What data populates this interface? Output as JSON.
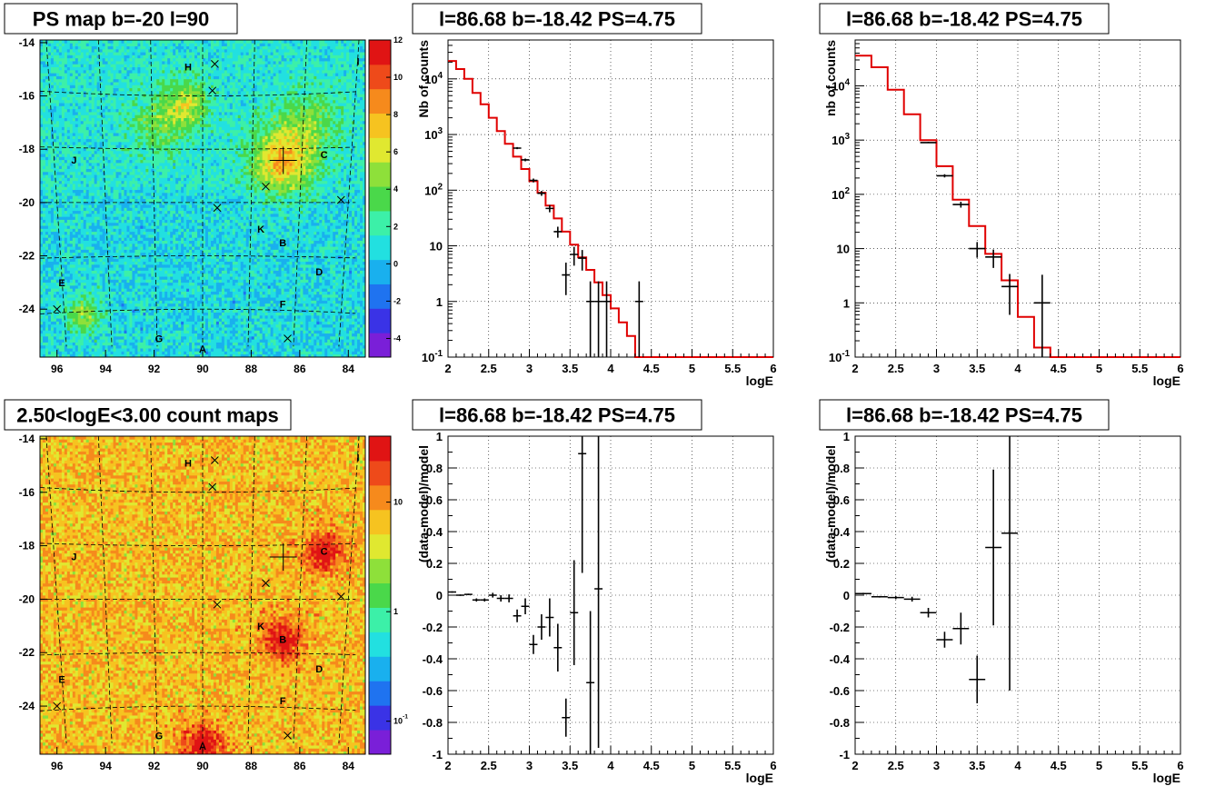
{
  "chart_data": [
    {
      "type": "heatmap",
      "title": "PS map b=-20 l=90",
      "x_ticks": [
        "96",
        "94",
        "92",
        "90",
        "88",
        "86",
        "84"
      ],
      "y_ticks": [
        "-14",
        "-16",
        "-18",
        "-20",
        "-22",
        "-24"
      ],
      "xlim": [
        96.7,
        83.3
      ],
      "ylim": [
        -25.8,
        -13.9
      ],
      "colorbar_ticks": [
        "12",
        "10",
        "8",
        "6",
        "4",
        "2",
        "0",
        "-2",
        "-4"
      ],
      "colorbar_range": [
        -5,
        12
      ],
      "palette": [
        "#7a1fd8",
        "#3a33e6",
        "#1f73f0",
        "#19b0ee",
        "#22e0e0",
        "#3cf0a8",
        "#4ad84a",
        "#8ee03a",
        "#e0e830",
        "#f6c320",
        "#f68a1c",
        "#ee4a1a",
        "#e01414"
      ],
      "sources": [
        {
          "label": "H",
          "l": 90.6,
          "b": -14.9
        },
        {
          "label": "J",
          "l": 95.3,
          "b": -18.4
        },
        {
          "label": "C",
          "l": 85.0,
          "b": -18.2
        },
        {
          "label": "K",
          "l": 87.6,
          "b": -21.0
        },
        {
          "label": "B",
          "l": 86.7,
          "b": -21.5
        },
        {
          "label": "D",
          "l": 85.2,
          "b": -22.6
        },
        {
          "label": "E",
          "l": 95.8,
          "b": -23.0
        },
        {
          "label": "F",
          "l": 86.7,
          "b": -23.8
        },
        {
          "label": "G",
          "l": 91.8,
          "b": -25.1
        },
        {
          "label": "A",
          "l": 90.0,
          "b": -25.5
        },
        {
          "label": "I",
          "l": 83.6,
          "b": -14.7
        }
      ],
      "crosses": [
        {
          "l": 89.5,
          "b": -14.8
        },
        {
          "l": 89.6,
          "b": -15.8
        },
        {
          "l": 87.4,
          "b": -19.4
        },
        {
          "l": 89.4,
          "b": -20.2
        },
        {
          "l": 84.3,
          "b": -19.9
        },
        {
          "l": 96.0,
          "b": -24.0
        },
        {
          "l": 86.5,
          "b": -25.1
        }
      ],
      "target": {
        "l": 86.68,
        "b": -18.42
      }
    },
    {
      "type": "line",
      "title": "l=86.68 b=-18.42 PS=4.75",
      "xlabel": "logE",
      "ylabel": "Nb of counts",
      "y_scale": "log",
      "xlim": [
        2,
        6
      ],
      "ylim": [
        0.1,
        50000
      ],
      "x_ticks": [
        "2",
        "2.5",
        "3",
        "3.5",
        "4",
        "4.5",
        "5",
        "5.5",
        "6"
      ],
      "y_ticks": [
        "10^-1",
        "1",
        "10",
        "10^2",
        "10^3",
        "10^4"
      ],
      "model_color": "#e00000",
      "model_edges": [
        2.0,
        2.1,
        2.2,
        2.3,
        2.4,
        2.5,
        2.6,
        2.7,
        2.8,
        2.9,
        3.0,
        3.1,
        3.2,
        3.3,
        3.4,
        3.5,
        3.6,
        3.7,
        3.8,
        3.9,
        4.0,
        4.1,
        4.2,
        4.3,
        6.0
      ],
      "model_values": [
        21000,
        15000,
        10000,
        5600,
        3500,
        2000,
        1150,
        680,
        400,
        240,
        145,
        90,
        53,
        31,
        18,
        10.5,
        6.2,
        3.7,
        2.2,
        1.3,
        0.75,
        0.42,
        0.24,
        0.1
      ],
      "data_points": [
        {
          "x": 2.85,
          "y": 570,
          "xerr": 0.05,
          "yerr_lo": 25,
          "yerr_hi": 25
        },
        {
          "x": 2.95,
          "y": 350,
          "xerr": 0.05,
          "yerr_lo": 20,
          "yerr_hi": 20
        },
        {
          "x": 3.05,
          "y": 150,
          "xerr": 0.05,
          "yerr_lo": 12,
          "yerr_hi": 12
        },
        {
          "x": 3.15,
          "y": 88,
          "xerr": 0.05,
          "yerr_lo": 9,
          "yerr_hi": 9
        },
        {
          "x": 3.25,
          "y": 47,
          "xerr": 0.05,
          "yerr_lo": 7,
          "yerr_hi": 7
        },
        {
          "x": 3.35,
          "y": 18,
          "xerr": 0.05,
          "yerr_lo": 4,
          "yerr_hi": 4
        },
        {
          "x": 3.45,
          "y": 3,
          "xerr": 0.05,
          "yerr_lo": 1.7,
          "yerr_hi": 2.0
        },
        {
          "x": 3.55,
          "y": 7,
          "xerr": 0.05,
          "yerr_lo": 2.6,
          "yerr_hi": 2.6
        },
        {
          "x": 3.65,
          "y": 6,
          "xerr": 0.05,
          "yerr_lo": 2.4,
          "yerr_hi": 2.4
        },
        {
          "x": 3.75,
          "y": 1,
          "xerr": 0.05,
          "yerr_lo": 0.99,
          "yerr_hi": 1.3
        },
        {
          "x": 3.85,
          "y": 1,
          "xerr": 0.05,
          "yerr_lo": 0.99,
          "yerr_hi": 1.3
        },
        {
          "x": 3.95,
          "y": 1,
          "xerr": 0.05,
          "yerr_lo": 0.99,
          "yerr_hi": 1.3
        },
        {
          "x": 4.35,
          "y": 1,
          "xerr": 0.05,
          "yerr_lo": 0.99,
          "yerr_hi": 1.3
        }
      ]
    },
    {
      "type": "line",
      "title": "l=86.68 b=-18.42 PS=4.75",
      "xlabel": "logE",
      "ylabel": "nb of counts",
      "y_scale": "log",
      "xlim": [
        2,
        6
      ],
      "ylim": [
        0.1,
        70000
      ],
      "x_ticks": [
        "2",
        "2.5",
        "3",
        "3.5",
        "4",
        "4.5",
        "5",
        "5.5",
        "6"
      ],
      "y_ticks": [
        "10^-1",
        "1",
        "10",
        "10^2",
        "10^3",
        "10^4"
      ],
      "model_color": "#e00000",
      "model_edges": [
        2.0,
        2.2,
        2.4,
        2.6,
        2.8,
        3.0,
        3.2,
        3.4,
        3.6,
        3.8,
        4.0,
        4.2,
        4.4,
        6.0
      ],
      "model_values": [
        36000,
        22000,
        8500,
        3000,
        1000,
        330,
        80,
        26,
        8,
        2.6,
        0.55,
        0.15,
        0.1
      ],
      "data_points": [
        {
          "x": 2.9,
          "y": 900,
          "xerr": 0.1,
          "yerr_lo": 30,
          "yerr_hi": 30
        },
        {
          "x": 3.1,
          "y": 220,
          "xerr": 0.1,
          "yerr_lo": 15,
          "yerr_hi": 15
        },
        {
          "x": 3.3,
          "y": 65,
          "xerr": 0.1,
          "yerr_lo": 8,
          "yerr_hi": 8
        },
        {
          "x": 3.5,
          "y": 10,
          "xerr": 0.1,
          "yerr_lo": 3.2,
          "yerr_hi": 3.2
        },
        {
          "x": 3.7,
          "y": 7,
          "xerr": 0.1,
          "yerr_lo": 2.6,
          "yerr_hi": 2.6
        },
        {
          "x": 3.9,
          "y": 2,
          "xerr": 0.1,
          "yerr_lo": 1.4,
          "yerr_hi": 1.4
        },
        {
          "x": 4.3,
          "y": 1,
          "xerr": 0.1,
          "yerr_lo": 0.99,
          "yerr_hi": 2.3
        }
      ]
    },
    {
      "type": "heatmap",
      "title": "2.50<logE<3.00 count maps",
      "x_ticks": [
        "96",
        "94",
        "92",
        "90",
        "88",
        "86",
        "84"
      ],
      "y_ticks": [
        "-14",
        "-16",
        "-18",
        "-20",
        "-22",
        "-24"
      ],
      "xlim": [
        96.7,
        83.3
      ],
      "ylim": [
        -25.8,
        -13.9
      ],
      "colorbar_ticks": [
        "10",
        "1",
        "10^-1"
      ],
      "colorbar_log": true,
      "colorbar_range": [
        0.05,
        40
      ],
      "palette": [
        "#7a1fd8",
        "#3a33e6",
        "#1f73f0",
        "#19b0ee",
        "#22e0e0",
        "#3cf0a8",
        "#4ad84a",
        "#8ee03a",
        "#e0e830",
        "#f6c320",
        "#f68a1c",
        "#ee4a1a",
        "#e01414"
      ],
      "sources": [
        {
          "label": "H",
          "l": 90.6,
          "b": -14.9
        },
        {
          "label": "J",
          "l": 95.3,
          "b": -18.4
        },
        {
          "label": "C",
          "l": 85.0,
          "b": -18.2
        },
        {
          "label": "K",
          "l": 87.6,
          "b": -21.0
        },
        {
          "label": "B",
          "l": 86.7,
          "b": -21.5
        },
        {
          "label": "D",
          "l": 85.2,
          "b": -22.6
        },
        {
          "label": "E",
          "l": 95.8,
          "b": -23.0
        },
        {
          "label": "F",
          "l": 86.7,
          "b": -23.8
        },
        {
          "label": "G",
          "l": 91.8,
          "b": -25.1
        },
        {
          "label": "A",
          "l": 90.0,
          "b": -25.5
        },
        {
          "label": "I",
          "l": 83.6,
          "b": -14.7
        }
      ],
      "crosses": [
        {
          "l": 89.5,
          "b": -14.8
        },
        {
          "l": 89.6,
          "b": -15.8
        },
        {
          "l": 87.4,
          "b": -19.4
        },
        {
          "l": 89.4,
          "b": -20.2
        },
        {
          "l": 84.3,
          "b": -19.9
        },
        {
          "l": 96.0,
          "b": -24.0
        },
        {
          "l": 86.5,
          "b": -25.1
        }
      ],
      "target": {
        "l": 86.68,
        "b": -18.42
      }
    },
    {
      "type": "scatter",
      "title": "l=86.68 b=-18.42 PS=4.75",
      "xlabel": "logE",
      "ylabel": "(data-model)/model",
      "xlim": [
        2,
        6
      ],
      "ylim": [
        -1,
        1
      ],
      "x_ticks": [
        "2",
        "2.5",
        "3",
        "3.5",
        "4",
        "4.5",
        "5",
        "5.5",
        "6"
      ],
      "y_ticks": [
        "-1",
        "-0.8",
        "-0.6",
        "-0.4",
        "-0.2",
        "0",
        "0.2",
        "0.4",
        "0.6",
        "0.8",
        "1"
      ],
      "data_points": [
        {
          "x": 2.05,
          "y": 0.02,
          "xerr": 0.05,
          "yerr": 0.005
        },
        {
          "x": 2.15,
          "y": 0.0,
          "xerr": 0.05,
          "yerr": 0.005
        },
        {
          "x": 2.25,
          "y": 0.005,
          "xerr": 0.05,
          "yerr": 0.005
        },
        {
          "x": 2.35,
          "y": -0.03,
          "xerr": 0.05,
          "yerr": 0.01
        },
        {
          "x": 2.45,
          "y": -0.03,
          "xerr": 0.05,
          "yerr": 0.01
        },
        {
          "x": 2.55,
          "y": 0.0,
          "xerr": 0.05,
          "yerr": 0.015
        },
        {
          "x": 2.65,
          "y": -0.02,
          "xerr": 0.05,
          "yerr": 0.02
        },
        {
          "x": 2.75,
          "y": -0.02,
          "xerr": 0.05,
          "yerr": 0.025
        },
        {
          "x": 2.85,
          "y": -0.13,
          "xerr": 0.05,
          "yerr": 0.04
        },
        {
          "x": 2.95,
          "y": -0.07,
          "xerr": 0.05,
          "yerr": 0.05
        },
        {
          "x": 3.05,
          "y": -0.31,
          "xerr": 0.05,
          "yerr": 0.06
        },
        {
          "x": 3.15,
          "y": -0.2,
          "xerr": 0.05,
          "yerr": 0.08
        },
        {
          "x": 3.25,
          "y": -0.14,
          "xerr": 0.05,
          "yerr": 0.12
        },
        {
          "x": 3.35,
          "y": -0.33,
          "xerr": 0.05,
          "yerr": 0.15
        },
        {
          "x": 3.45,
          "y": -0.77,
          "xerr": 0.05,
          "yerr": 0.12
        },
        {
          "x": 3.55,
          "y": -0.11,
          "xerr": 0.05,
          "yerr": 0.33
        },
        {
          "x": 3.65,
          "y": 0.89,
          "xerr": 0.05,
          "yerr": 0.75
        },
        {
          "x": 3.75,
          "y": -0.55,
          "xerr": 0.05,
          "yerr": 0.45
        },
        {
          "x": 3.85,
          "y": 0.04,
          "xerr": 0.05,
          "yerr": 1.0
        }
      ]
    },
    {
      "type": "scatter",
      "title": "l=86.68 b=-18.42 PS=4.75",
      "xlabel": "logE",
      "ylabel": "(data-model)/model",
      "xlim": [
        2,
        6
      ],
      "ylim": [
        -1,
        1
      ],
      "x_ticks": [
        "2",
        "2.5",
        "3",
        "3.5",
        "4",
        "4.5",
        "5",
        "5.5",
        "6"
      ],
      "y_ticks": [
        "-1",
        "-0.8",
        "-0.6",
        "-0.4",
        "-0.2",
        "0",
        "0.2",
        "0.4",
        "0.6",
        "0.8",
        "1"
      ],
      "data_points": [
        {
          "x": 2.1,
          "y": 0.01,
          "xerr": 0.1,
          "yerr": 0.005
        },
        {
          "x": 2.3,
          "y": -0.01,
          "xerr": 0.1,
          "yerr": 0.005
        },
        {
          "x": 2.5,
          "y": -0.015,
          "xerr": 0.1,
          "yerr": 0.01
        },
        {
          "x": 2.7,
          "y": -0.025,
          "xerr": 0.1,
          "yerr": 0.015
        },
        {
          "x": 2.9,
          "y": -0.11,
          "xerr": 0.1,
          "yerr": 0.03
        },
        {
          "x": 3.1,
          "y": -0.28,
          "xerr": 0.1,
          "yerr": 0.05
        },
        {
          "x": 3.3,
          "y": -0.21,
          "xerr": 0.1,
          "yerr": 0.1
        },
        {
          "x": 3.5,
          "y": -0.53,
          "xerr": 0.1,
          "yerr": 0.15
        },
        {
          "x": 3.7,
          "y": 0.3,
          "xerr": 0.1,
          "yerr": 0.49
        },
        {
          "x": 3.9,
          "y": 0.39,
          "xerr": 0.1,
          "yerr": 0.99
        }
      ]
    }
  ]
}
